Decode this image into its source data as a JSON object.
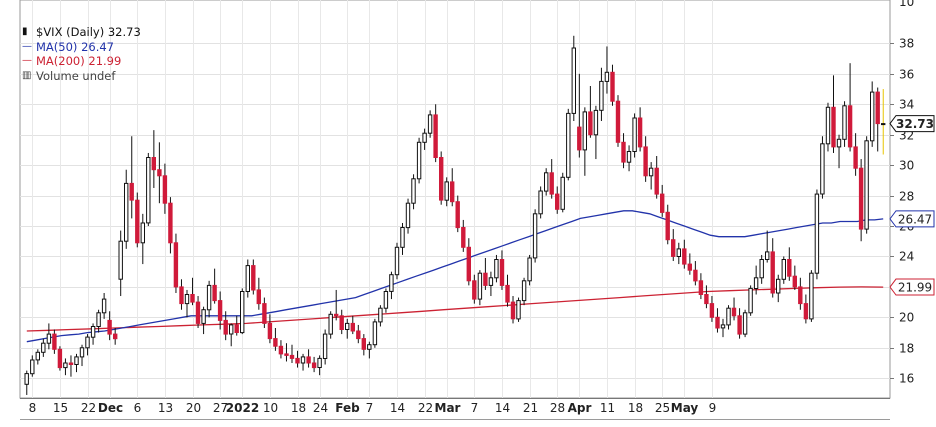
{
  "chart_data": {
    "type": "candlestick",
    "title": "$VIX (Daily)",
    "last_value": "32.73",
    "legend": {
      "symbol": "$VIX (Daily)",
      "last": "32.73",
      "ma50_label": "MA(50)",
      "ma50_value": "26.47",
      "ma200_label": "MA(200)",
      "ma200_value": "21.99",
      "volume_label": "Volume undef"
    },
    "price_badges": {
      "last": "32.73",
      "ma50": "26.47",
      "ma200": "21.99"
    },
    "y_ticks": [
      16,
      18,
      20,
      22,
      24,
      26,
      28,
      30,
      32,
      34,
      36,
      38
    ],
    "y_top_partial": "10",
    "ylim": [
      14.7,
      39.8
    ],
    "x_ticks": [
      {
        "label": "8",
        "i": 1,
        "bold": false
      },
      {
        "label": "15",
        "i": 6,
        "bold": false
      },
      {
        "label": "22",
        "i": 11,
        "bold": false
      },
      {
        "label": "Dec",
        "i": 15,
        "bold": true
      },
      {
        "label": "6",
        "i": 20,
        "bold": false
      },
      {
        "label": "13",
        "i": 25,
        "bold": false
      },
      {
        "label": "20",
        "i": 30,
        "bold": false
      },
      {
        "label": "27",
        "i": 35,
        "bold": false
      },
      {
        "label": "2022",
        "i": 39,
        "bold": true
      },
      {
        "label": "10",
        "i": 44,
        "bold": false
      },
      {
        "label": "18",
        "i": 49,
        "bold": false
      },
      {
        "label": "24",
        "i": 53,
        "bold": false
      },
      {
        "label": "Feb",
        "i": 58,
        "bold": true
      },
      {
        "label": "7",
        "i": 62,
        "bold": false
      },
      {
        "label": "14",
        "i": 67,
        "bold": false
      },
      {
        "label": "22",
        "i": 72,
        "bold": false
      },
      {
        "label": "Mar",
        "i": 76,
        "bold": true
      },
      {
        "label": "7",
        "i": 81,
        "bold": false
      },
      {
        "label": "14",
        "i": 86,
        "bold": false
      },
      {
        "label": "21",
        "i": 91,
        "bold": false
      },
      {
        "label": "28",
        "i": 96,
        "bold": false
      },
      {
        "label": "Apr",
        "i": 100,
        "bold": true
      },
      {
        "label": "11",
        "i": 105,
        "bold": false
      },
      {
        "label": "18",
        "i": 110,
        "bold": false
      },
      {
        "label": "25",
        "i": 115,
        "bold": false
      },
      {
        "label": "May",
        "i": 119,
        "bold": true
      },
      {
        "label": "9",
        "i": 124,
        "bold": false
      }
    ],
    "candles": [
      [
        15.6,
        16.5,
        14.9,
        16.3
      ],
      [
        16.3,
        17.5,
        16.1,
        17.2
      ],
      [
        17.2,
        17.9,
        16.9,
        17.7
      ],
      [
        17.7,
        18.6,
        17.4,
        18.3
      ],
      [
        18.3,
        19.6,
        17.9,
        18.9
      ],
      [
        18.9,
        19.2,
        17.6,
        17.9
      ],
      [
        17.9,
        18.1,
        16.5,
        16.7
      ],
      [
        16.7,
        17.3,
        16.2,
        17.0
      ],
      [
        17.0,
        17.5,
        16.1,
        16.9
      ],
      [
        16.9,
        17.6,
        16.4,
        17.4
      ],
      [
        17.4,
        18.2,
        16.8,
        18.0
      ],
      [
        18.0,
        18.9,
        17.5,
        18.7
      ],
      [
        18.7,
        19.6,
        18.2,
        19.4
      ],
      [
        19.4,
        20.5,
        19.0,
        20.3
      ],
      [
        20.3,
        21.6,
        19.9,
        21.2
      ],
      [
        19.8,
        20.4,
        18.5,
        18.9
      ],
      [
        18.9,
        19.3,
        18.2,
        18.6
      ],
      [
        22.5,
        25.7,
        21.4,
        25.0
      ],
      [
        25.0,
        29.7,
        24.5,
        28.8
      ],
      [
        28.8,
        31.9,
        26.5,
        27.7
      ],
      [
        27.7,
        28.2,
        24.6,
        24.9
      ],
      [
        24.9,
        26.8,
        23.5,
        26.2
      ],
      [
        26.2,
        30.8,
        26.0,
        30.5
      ],
      [
        30.5,
        32.3,
        28.5,
        29.7
      ],
      [
        29.7,
        31.5,
        27.5,
        29.3
      ],
      [
        29.3,
        30.1,
        26.8,
        27.5
      ],
      [
        27.5,
        27.9,
        24.2,
        24.9
      ],
      [
        24.9,
        25.5,
        21.6,
        22.0
      ],
      [
        22.0,
        22.5,
        20.5,
        20.9
      ],
      [
        20.9,
        21.8,
        20.0,
        21.5
      ],
      [
        21.5,
        22.6,
        20.8,
        21.0
      ],
      [
        21.0,
        21.4,
        19.3,
        19.6
      ],
      [
        19.6,
        20.7,
        18.9,
        20.5
      ],
      [
        20.5,
        22.4,
        20.0,
        22.1
      ],
      [
        22.1,
        23.2,
        20.9,
        21.1
      ],
      [
        21.1,
        21.7,
        19.2,
        19.8
      ],
      [
        19.8,
        20.4,
        18.5,
        18.9
      ],
      [
        18.9,
        19.6,
        18.1,
        19.5
      ],
      [
        19.5,
        20.1,
        18.8,
        19.0
      ],
      [
        19.0,
        21.9,
        18.9,
        21.7
      ],
      [
        21.7,
        23.8,
        21.3,
        23.4
      ],
      [
        23.4,
        23.8,
        21.5,
        21.8
      ],
      [
        21.8,
        22.6,
        20.5,
        20.9
      ],
      [
        20.9,
        21.3,
        19.3,
        19.6
      ],
      [
        19.6,
        20.2,
        18.3,
        18.6
      ],
      [
        18.6,
        19.3,
        17.8,
        18.1
      ],
      [
        18.1,
        18.5,
        17.3,
        17.6
      ],
      [
        17.6,
        18.3,
        17.1,
        17.5
      ],
      [
        17.5,
        18.2,
        17.0,
        17.3
      ],
      [
        17.3,
        17.8,
        16.7,
        17.0
      ],
      [
        17.0,
        17.6,
        16.5,
        17.4
      ],
      [
        17.4,
        17.9,
        16.7,
        17.0
      ],
      [
        17.0,
        17.4,
        16.4,
        16.7
      ],
      [
        16.7,
        17.5,
        16.2,
        17.3
      ],
      [
        17.3,
        19.2,
        16.9,
        18.9
      ],
      [
        18.9,
        20.4,
        18.6,
        20.2
      ],
      [
        20.2,
        21.8,
        19.8,
        20.1
      ],
      [
        20.1,
        20.5,
        18.9,
        19.2
      ],
      [
        19.2,
        19.9,
        18.6,
        19.6
      ],
      [
        19.6,
        20.1,
        18.9,
        19.1
      ],
      [
        19.1,
        19.5,
        18.3,
        18.6
      ],
      [
        18.6,
        18.9,
        17.5,
        17.9
      ],
      [
        17.9,
        18.4,
        17.3,
        18.2
      ],
      [
        18.2,
        19.9,
        18.0,
        19.7
      ],
      [
        19.7,
        20.8,
        19.4,
        20.6
      ],
      [
        20.6,
        21.9,
        20.3,
        21.7
      ],
      [
        21.7,
        23.0,
        21.2,
        22.8
      ],
      [
        22.8,
        24.9,
        22.5,
        24.6
      ],
      [
        24.6,
        26.2,
        24.1,
        25.9
      ],
      [
        25.9,
        27.8,
        25.5,
        27.5
      ],
      [
        27.5,
        29.4,
        27.1,
        29.1
      ],
      [
        29.1,
        31.8,
        28.8,
        31.5
      ],
      [
        31.5,
        32.4,
        31.0,
        32.1
      ],
      [
        32.1,
        33.6,
        31.8,
        33.3
      ],
      [
        33.3,
        34.0,
        30.2,
        30.5
      ],
      [
        30.5,
        30.9,
        27.4,
        27.7
      ],
      [
        27.7,
        29.2,
        27.3,
        28.9
      ],
      [
        28.9,
        29.8,
        27.3,
        27.6
      ],
      [
        27.6,
        28.0,
        25.6,
        25.9
      ],
      [
        25.9,
        26.4,
        24.3,
        24.6
      ],
      [
        24.6,
        25.2,
        22.1,
        22.4
      ],
      [
        22.4,
        22.8,
        20.9,
        21.2
      ],
      [
        21.2,
        23.1,
        20.8,
        22.9
      ],
      [
        22.9,
        23.9,
        21.8,
        22.1
      ],
      [
        22.1,
        23.0,
        21.4,
        22.6
      ],
      [
        22.6,
        24.1,
        22.3,
        23.8
      ],
      [
        23.8,
        24.4,
        21.8,
        22.1
      ],
      [
        22.1,
        22.8,
        20.7,
        21.0
      ],
      [
        21.0,
        21.4,
        19.6,
        19.9
      ],
      [
        19.9,
        21.3,
        19.7,
        21.1
      ],
      [
        21.1,
        22.6,
        20.8,
        22.4
      ],
      [
        22.4,
        24.1,
        22.1,
        23.9
      ],
      [
        23.9,
        27.1,
        23.6,
        26.8
      ],
      [
        26.8,
        28.6,
        26.5,
        28.3
      ],
      [
        28.3,
        29.8,
        28.0,
        29.5
      ],
      [
        29.5,
        30.4,
        27.8,
        28.1
      ],
      [
        28.1,
        28.6,
        26.8,
        27.1
      ],
      [
        27.1,
        29.5,
        26.9,
        29.2
      ],
      [
        29.2,
        33.7,
        29.0,
        33.4
      ],
      [
        33.4,
        38.5,
        32.9,
        37.7
      ],
      [
        32.5,
        36.0,
        30.5,
        31.0
      ],
      [
        31.0,
        33.8,
        29.3,
        33.5
      ],
      [
        33.5,
        35.2,
        31.8,
        32.0
      ],
      [
        32.0,
        33.9,
        30.4,
        33.6
      ],
      [
        33.6,
        36.4,
        32.9,
        35.5
      ],
      [
        35.5,
        37.8,
        34.7,
        36.1
      ],
      [
        36.1,
        36.6,
        33.9,
        34.2
      ],
      [
        34.2,
        34.6,
        31.2,
        31.5
      ],
      [
        31.5,
        32.1,
        29.8,
        30.2
      ],
      [
        30.2,
        31.3,
        29.6,
        30.9
      ],
      [
        30.9,
        33.4,
        30.5,
        33.1
      ],
      [
        33.1,
        33.8,
        30.9,
        31.2
      ],
      [
        31.2,
        31.9,
        28.9,
        29.3
      ],
      [
        29.3,
        30.2,
        28.4,
        29.8
      ],
      [
        29.8,
        30.6,
        27.8,
        28.1
      ],
      [
        28.1,
        28.7,
        26.6,
        26.9
      ],
      [
        26.9,
        27.4,
        24.8,
        25.1
      ],
      [
        25.1,
        25.8,
        23.7,
        24.0
      ],
      [
        24.0,
        24.9,
        23.5,
        24.5
      ],
      [
        24.5,
        25.1,
        23.2,
        23.5
      ],
      [
        23.5,
        24.2,
        22.8,
        23.1
      ],
      [
        23.1,
        23.7,
        22.1,
        22.4
      ],
      [
        22.4,
        22.9,
        21.2,
        21.5
      ],
      [
        21.5,
        22.1,
        20.6,
        20.9
      ],
      [
        20.9,
        21.4,
        19.7,
        20.0
      ],
      [
        20.0,
        20.6,
        19.0,
        19.3
      ],
      [
        19.3,
        19.9,
        18.7,
        19.5
      ],
      [
        19.5,
        20.8,
        19.2,
        20.6
      ],
      [
        20.6,
        21.3,
        19.8,
        20.1
      ],
      [
        20.1,
        20.6,
        18.6,
        18.9
      ],
      [
        18.9,
        20.5,
        18.7,
        20.3
      ],
      [
        20.3,
        22.1,
        20.1,
        21.9
      ],
      [
        21.9,
        23.4,
        21.5,
        22.6
      ],
      [
        22.6,
        24.1,
        22.2,
        23.8
      ],
      [
        23.8,
        25.7,
        23.6,
        24.3
      ],
      [
        24.3,
        25.2,
        21.3,
        21.6
      ],
      [
        21.6,
        22.8,
        21.0,
        22.5
      ],
      [
        22.5,
        24.0,
        22.2,
        23.8
      ],
      [
        23.8,
        24.6,
        22.4,
        22.7
      ],
      [
        22.7,
        23.4,
        21.8,
        22.0
      ],
      [
        22.0,
        22.6,
        20.5,
        20.9
      ],
      [
        20.9,
        21.5,
        19.6,
        19.9
      ],
      [
        19.9,
        23.1,
        19.7,
        22.9
      ],
      [
        22.9,
        28.4,
        22.5,
        28.1
      ],
      [
        28.1,
        31.9,
        27.8,
        31.4
      ],
      [
        31.4,
        34.1,
        30.9,
        33.8
      ],
      [
        33.8,
        35.9,
        30.8,
        31.2
      ],
      [
        31.2,
        32.0,
        29.8,
        31.7
      ],
      [
        31.7,
        34.2,
        31.2,
        33.9
      ],
      [
        33.9,
        36.7,
        30.9,
        31.2
      ],
      [
        31.2,
        32.1,
        29.3,
        29.8
      ],
      [
        29.8,
        30.4,
        25.0,
        25.8
      ],
      [
        25.8,
        31.9,
        25.5,
        31.6
      ],
      [
        31.6,
        35.5,
        31.2,
        34.8
      ],
      [
        34.8,
        35.1,
        30.9,
        32.73
      ],
      [
        32.73,
        35.0,
        30.7,
        32.73
      ]
    ],
    "ma50": [
      18.4,
      18.5,
      18.6,
      18.7,
      18.8,
      18.85,
      18.9,
      19.0,
      19.05,
      19.1,
      19.2,
      19.3,
      19.4,
      19.5,
      19.6,
      19.7,
      19.8,
      19.9,
      20.0,
      20.1,
      20.1,
      20.1,
      20.1,
      20.1,
      20.1,
      20.1,
      20.1,
      20.2,
      20.3,
      20.4,
      20.5,
      20.6,
      20.7,
      20.8,
      20.9,
      21.0,
      21.1,
      21.2,
      21.3,
      21.5,
      21.7,
      21.9,
      22.1,
      22.3,
      22.5,
      22.7,
      22.9,
      23.1,
      23.3,
      23.5,
      23.7,
      23.9,
      24.1,
      24.3,
      24.5,
      24.7,
      24.9,
      25.1,
      25.3,
      25.5,
      25.7,
      25.9,
      26.1,
      26.3,
      26.5,
      26.6,
      26.7,
      26.8,
      26.9,
      27.0,
      27.0,
      26.9,
      26.8,
      26.6,
      26.4,
      26.2,
      26.0,
      25.8,
      25.6,
      25.4,
      25.3,
      25.3,
      25.3,
      25.3,
      25.4,
      25.5,
      25.6,
      25.7,
      25.8,
      25.9,
      26.0,
      26.1,
      26.2,
      26.2,
      26.3,
      26.3,
      26.3,
      26.4,
      26.4,
      26.47
    ],
    "ma200": [
      19.1,
      19.15,
      19.2,
      19.25,
      19.3,
      19.35,
      19.4,
      19.45,
      19.5,
      19.55,
      19.6,
      19.7,
      19.8,
      19.9,
      20.0,
      20.1,
      20.2,
      20.3,
      20.4,
      20.5,
      20.6,
      20.7,
      20.8,
      20.9,
      21.0,
      21.1,
      21.2,
      21.3,
      21.4,
      21.5,
      21.6,
      21.7,
      21.75,
      21.8,
      21.85,
      21.9,
      21.95,
      21.99,
      22.0,
      21.99
    ],
    "ma_dates_start": 0
  }
}
